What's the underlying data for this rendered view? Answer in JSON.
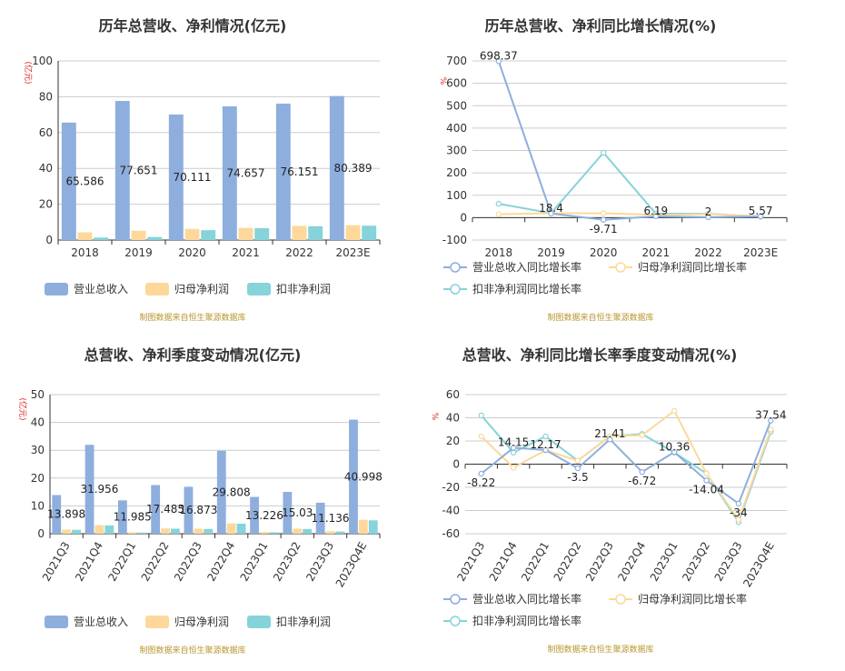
{
  "colors": {
    "revenue": "#8eaedd",
    "parent_profit": "#fdd89a",
    "deducted_profit": "#86d3d9"
  },
  "chart_data": [
    {
      "type": "bar",
      "title": "历年总营收、净利情况(亿元)",
      "unit_label": "(亿元)",
      "categories": [
        "2018",
        "2019",
        "2020",
        "2021",
        "2022",
        "2023E"
      ],
      "series": [
        {
          "name": "营业总收入",
          "values": [
            65.586,
            77.651,
            70.111,
            74.657,
            76.151,
            80.389
          ],
          "labels": [
            "65.586",
            "77.651",
            "70.111",
            "74.657",
            "76.151",
            "80.389"
          ]
        },
        {
          "name": "归母净利润",
          "values": [
            4.3,
            5.2,
            6.2,
            6.8,
            7.9,
            8.3
          ]
        },
        {
          "name": "扣非净利润",
          "values": [
            1.4,
            1.7,
            5.5,
            6.6,
            7.7,
            8.0
          ]
        }
      ],
      "ylim": [
        0,
        100
      ],
      "yticks": [
        0,
        20,
        40,
        60,
        80,
        100
      ],
      "source": "制图数据来自恒生聚源数据库"
    },
    {
      "type": "line",
      "title": "历年总营收、净利同比增长情况(%)",
      "unit_label": "%",
      "categories": [
        "2018",
        "2019",
        "2020",
        "2021",
        "2022",
        "2023E"
      ],
      "series": [
        {
          "name": "营业总收入同比增长率",
          "values": [
            698.37,
            18.4,
            -9.71,
            6.19,
            2,
            5.57
          ],
          "labels": [
            "698.37",
            "18.4",
            "-9.71",
            "6.19",
            "2",
            "5.57"
          ]
        },
        {
          "name": "归母净利润同比增长率",
          "values": [
            15,
            20,
            20,
            12,
            16,
            5
          ]
        },
        {
          "name": "扣非净利润同比增长率",
          "values": [
            62,
            20,
            290,
            18,
            18,
            4
          ]
        }
      ],
      "ylim": [
        -100,
        700
      ],
      "yticks": [
        -100,
        0,
        100,
        200,
        300,
        400,
        500,
        600,
        700
      ],
      "source": "制图数据来自恒生聚源数据库"
    },
    {
      "type": "bar",
      "title": "总营收、净利季度变动情况(亿元)",
      "unit_label": "(亿元)",
      "categories": [
        "2021Q3",
        "2021Q4",
        "2022Q1",
        "2022Q2",
        "2022Q3",
        "2022Q4",
        "2023Q1",
        "2023Q2",
        "2023Q3",
        "2023Q4E"
      ],
      "series": [
        {
          "name": "营业总收入",
          "values": [
            13.898,
            31.956,
            11.985,
            17.485,
            16.873,
            29.808,
            13.226,
            15.03,
            11.136,
            40.998
          ],
          "labels": [
            "13.898",
            "31.956",
            "11.985",
            "17.485",
            "16.873",
            "29.808",
            "13.226",
            "15.03",
            "11.136",
            "40.998"
          ]
        },
        {
          "name": "归母净利润",
          "values": [
            1.5,
            3.1,
            0.5,
            1.9,
            1.8,
            3.7,
            0.6,
            1.8,
            0.9,
            5.0
          ]
        },
        {
          "name": "扣非净利润",
          "values": [
            1.4,
            3.0,
            0.4,
            1.8,
            1.7,
            3.6,
            0.5,
            1.7,
            0.8,
            4.8
          ]
        }
      ],
      "ylim": [
        0,
        50
      ],
      "yticks": [
        0,
        10,
        20,
        30,
        40,
        50
      ],
      "source": "制图数据来自恒生聚源数据库"
    },
    {
      "type": "line",
      "title": "总营收、净利同比增长率季度变动情况(%)",
      "unit_label": "%",
      "categories": [
        "2021Q3",
        "2021Q4",
        "2022Q1",
        "2022Q2",
        "2022Q3",
        "2022Q4",
        "2023Q1",
        "2023Q2",
        "2023Q3",
        "2023Q4E"
      ],
      "series": [
        {
          "name": "营业总收入同比增长率",
          "values": [
            -8.22,
            14.15,
            12.17,
            -3.5,
            21.41,
            -6.72,
            10.36,
            -14.04,
            -34,
            37.54
          ],
          "labels": [
            "-8.22",
            "14.15",
            "12.17",
            "-3.5",
            "21.41",
            "-6.72",
            "10.36",
            "-14.04",
            "-34",
            "37.54"
          ]
        },
        {
          "name": "归母净利润同比增长率",
          "values": [
            24,
            -3,
            12,
            3,
            24,
            25,
            46,
            -8,
            -48,
            30
          ]
        },
        {
          "name": "扣非净利润同比增长率",
          "values": [
            42,
            10,
            24,
            3,
            24,
            26,
            10,
            -8,
            -50,
            28
          ]
        }
      ],
      "ylim": [
        -60,
        60
      ],
      "yticks": [
        -60,
        -40,
        -20,
        0,
        20,
        40,
        60
      ],
      "source": "制图数据来自恒生聚源数据库"
    }
  ]
}
